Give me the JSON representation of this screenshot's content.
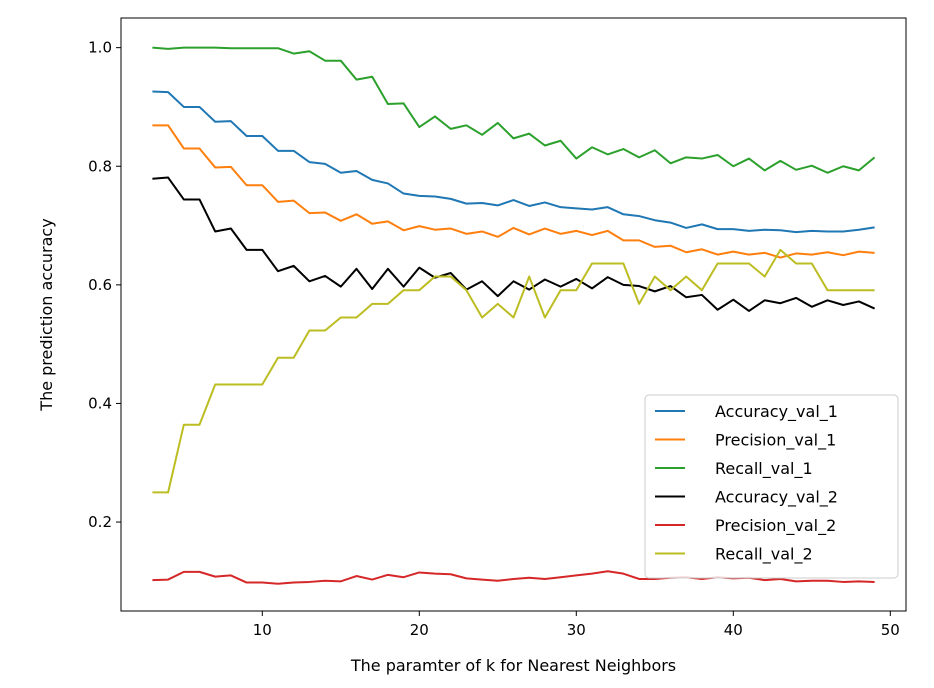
{
  "chart_data": {
    "type": "line",
    "xlabel": "The paramter of k for Nearest Neighbors",
    "ylabel": "The prediction accuracy",
    "xlim": [
      1,
      51
    ],
    "ylim": [
      0.05,
      1.05
    ],
    "xticks": [
      10,
      20,
      30,
      40,
      50
    ],
    "yticks": [
      0.2,
      0.4,
      0.6,
      0.8,
      1.0
    ],
    "xtick_labels": [
      "10",
      "20",
      "30",
      "40",
      "50"
    ],
    "ytick_labels": [
      "0.2",
      "0.4",
      "0.6",
      "0.8",
      "1.0"
    ],
    "grid": false,
    "legend_position": "lower-right",
    "x": [
      3,
      4,
      5,
      6,
      7,
      8,
      9,
      10,
      11,
      12,
      13,
      14,
      15,
      16,
      17,
      18,
      19,
      20,
      21,
      22,
      23,
      24,
      25,
      26,
      27,
      28,
      29,
      30,
      31,
      32,
      33,
      34,
      35,
      36,
      37,
      38,
      39,
      40,
      41,
      42,
      43,
      44,
      45,
      46,
      47,
      48,
      49
    ],
    "series": [
      {
        "name": "Accuracy_val_1",
        "color": "#1f77b4",
        "values": [
          0.926,
          0.925,
          0.9,
          0.9,
          0.875,
          0.876,
          0.851,
          0.851,
          0.826,
          0.826,
          0.807,
          0.804,
          0.789,
          0.792,
          0.777,
          0.771,
          0.754,
          0.75,
          0.749,
          0.745,
          0.737,
          0.738,
          0.734,
          0.743,
          0.733,
          0.739,
          0.731,
          0.729,
          0.727,
          0.731,
          0.719,
          0.716,
          0.709,
          0.705,
          0.696,
          0.702,
          0.694,
          0.694,
          0.691,
          0.693,
          0.692,
          0.689,
          0.691,
          0.69,
          0.69,
          0.693,
          0.697
        ]
      },
      {
        "name": "Precision_val_1",
        "color": "#ff7f0e",
        "values": [
          0.869,
          0.869,
          0.83,
          0.83,
          0.798,
          0.799,
          0.768,
          0.768,
          0.74,
          0.742,
          0.721,
          0.722,
          0.708,
          0.719,
          0.703,
          0.707,
          0.692,
          0.699,
          0.693,
          0.695,
          0.686,
          0.69,
          0.681,
          0.696,
          0.685,
          0.695,
          0.686,
          0.691,
          0.684,
          0.691,
          0.675,
          0.675,
          0.664,
          0.666,
          0.655,
          0.66,
          0.651,
          0.656,
          0.651,
          0.654,
          0.646,
          0.653,
          0.651,
          0.655,
          0.65,
          0.656,
          0.654
        ]
      },
      {
        "name": "Recall_val_1",
        "color": "#2ca02c",
        "values": [
          1.0,
          0.998,
          1.0,
          1.0,
          1.0,
          0.999,
          0.999,
          0.999,
          0.999,
          0.99,
          0.994,
          0.978,
          0.978,
          0.946,
          0.951,
          0.905,
          0.906,
          0.866,
          0.884,
          0.863,
          0.869,
          0.853,
          0.873,
          0.847,
          0.855,
          0.835,
          0.843,
          0.813,
          0.832,
          0.82,
          0.829,
          0.815,
          0.827,
          0.805,
          0.815,
          0.813,
          0.819,
          0.8,
          0.813,
          0.793,
          0.809,
          0.794,
          0.801,
          0.789,
          0.8,
          0.793,
          0.815
        ]
      },
      {
        "name": "Accuracy_val_2",
        "color": "#000000",
        "values": [
          0.779,
          0.781,
          0.744,
          0.744,
          0.69,
          0.695,
          0.659,
          0.659,
          0.623,
          0.632,
          0.606,
          0.615,
          0.597,
          0.627,
          0.593,
          0.627,
          0.597,
          0.629,
          0.612,
          0.62,
          0.592,
          0.606,
          0.581,
          0.606,
          0.592,
          0.609,
          0.597,
          0.61,
          0.594,
          0.613,
          0.6,
          0.598,
          0.589,
          0.598,
          0.579,
          0.583,
          0.558,
          0.575,
          0.556,
          0.574,
          0.569,
          0.578,
          0.563,
          0.574,
          0.566,
          0.572,
          0.56
        ]
      },
      {
        "name": "Precision_val_2",
        "color": "#d62728",
        "values": [
          0.102,
          0.103,
          0.116,
          0.116,
          0.108,
          0.11,
          0.098,
          0.098,
          0.096,
          0.098,
          0.099,
          0.101,
          0.1,
          0.109,
          0.103,
          0.111,
          0.107,
          0.115,
          0.113,
          0.112,
          0.105,
          0.103,
          0.101,
          0.104,
          0.106,
          0.104,
          0.107,
          0.11,
          0.113,
          0.117,
          0.113,
          0.104,
          0.104,
          0.106,
          0.107,
          0.104,
          0.107,
          0.105,
          0.106,
          0.102,
          0.104,
          0.1,
          0.101,
          0.101,
          0.099,
          0.1,
          0.099
        ]
      },
      {
        "name": "Recall_val_2",
        "color": "#bcbd22",
        "values": [
          0.25,
          0.25,
          0.364,
          0.364,
          0.432,
          0.432,
          0.432,
          0.432,
          0.477,
          0.477,
          0.523,
          0.523,
          0.545,
          0.545,
          0.568,
          0.568,
          0.591,
          0.591,
          0.614,
          0.614,
          0.591,
          0.545,
          0.568,
          0.545,
          0.614,
          0.545,
          0.591,
          0.591,
          0.636,
          0.636,
          0.636,
          0.568,
          0.614,
          0.591,
          0.614,
          0.591,
          0.636,
          0.636,
          0.636,
          0.614,
          0.659,
          0.636,
          0.636,
          0.591,
          0.591,
          0.591,
          0.591
        ]
      }
    ]
  }
}
